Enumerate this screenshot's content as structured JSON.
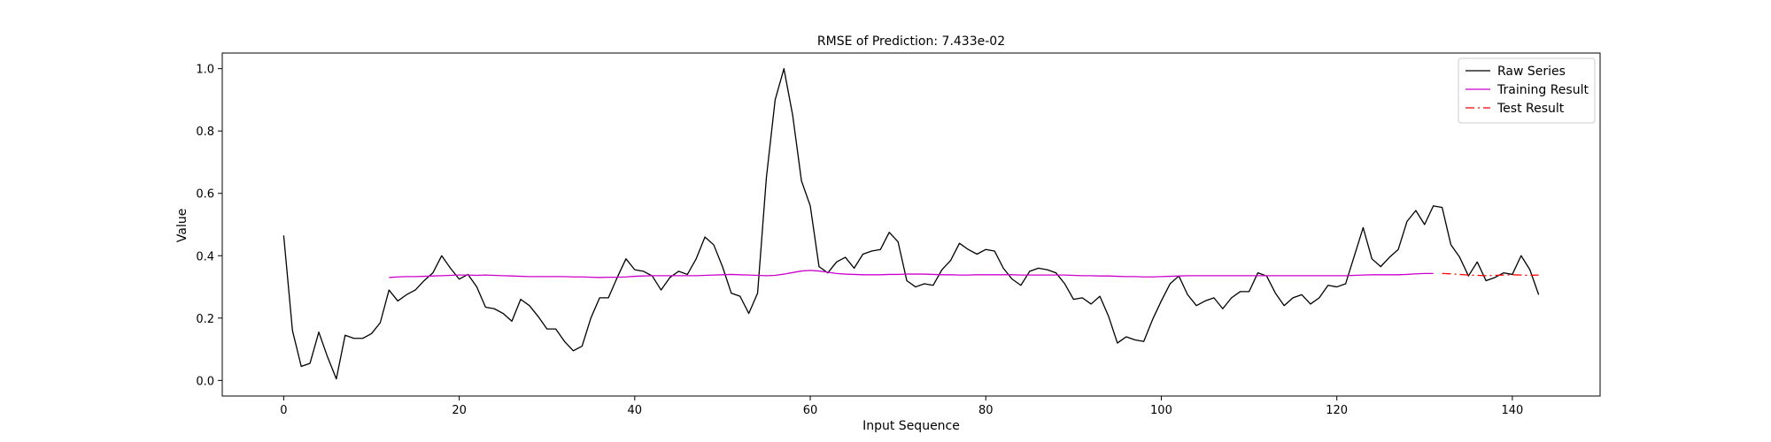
{
  "chart_data": {
    "type": "line",
    "title": "RMSE of Prediction: 7.433e-02",
    "xlabel": "Input Sequence",
    "ylabel": "Value",
    "xlim": [
      -7,
      150
    ],
    "ylim": [
      -0.05,
      1.05
    ],
    "xticks": [
      0,
      20,
      40,
      60,
      80,
      100,
      120,
      140
    ],
    "yticks": [
      0.0,
      0.2,
      0.4,
      0.6,
      0.8,
      1.0
    ],
    "ytick_labels": [
      "0.0",
      "0.2",
      "0.4",
      "0.6",
      "0.8",
      "1.0"
    ],
    "grid": false,
    "legend_position": "top-right",
    "series": [
      {
        "name": "Raw Series",
        "color": "#000000",
        "dash": "solid",
        "x_start": 0,
        "values": [
          0.465,
          0.16,
          0.045,
          0.055,
          0.155,
          0.075,
          0.005,
          0.145,
          0.135,
          0.135,
          0.15,
          0.185,
          0.29,
          0.255,
          0.275,
          0.29,
          0.32,
          0.345,
          0.4,
          0.36,
          0.325,
          0.34,
          0.3,
          0.235,
          0.23,
          0.215,
          0.19,
          0.26,
          0.24,
          0.205,
          0.165,
          0.165,
          0.125,
          0.095,
          0.11,
          0.2,
          0.265,
          0.265,
          0.33,
          0.39,
          0.355,
          0.35,
          0.335,
          0.29,
          0.33,
          0.35,
          0.34,
          0.39,
          0.46,
          0.435,
          0.365,
          0.28,
          0.27,
          0.215,
          0.28,
          0.65,
          0.9,
          1.0,
          0.85,
          0.64,
          0.56,
          0.365,
          0.345,
          0.38,
          0.395,
          0.36,
          0.405,
          0.415,
          0.42,
          0.475,
          0.445,
          0.32,
          0.3,
          0.31,
          0.305,
          0.355,
          0.385,
          0.44,
          0.42,
          0.405,
          0.42,
          0.415,
          0.36,
          0.325,
          0.305,
          0.35,
          0.36,
          0.355,
          0.345,
          0.31,
          0.26,
          0.265,
          0.245,
          0.27,
          0.205,
          0.12,
          0.14,
          0.13,
          0.125,
          0.195,
          0.255,
          0.31,
          0.335,
          0.275,
          0.24,
          0.255,
          0.265,
          0.23,
          0.265,
          0.285,
          0.285,
          0.345,
          0.335,
          0.28,
          0.24,
          0.265,
          0.275,
          0.245,
          0.265,
          0.305,
          0.3,
          0.31,
          0.4,
          0.49,
          0.39,
          0.365,
          0.395,
          0.42,
          0.51,
          0.545,
          0.5,
          0.56,
          0.555,
          0.435,
          0.395,
          0.335,
          0.38,
          0.32,
          0.33,
          0.345,
          0.34,
          0.4,
          0.355,
          0.275
        ]
      },
      {
        "name": "Training Result",
        "color": "#cc00cc",
        "dash": "solid",
        "x_start": 12,
        "values": [
          0.33,
          0.332,
          0.333,
          0.333,
          0.334,
          0.335,
          0.336,
          0.337,
          0.338,
          0.338,
          0.337,
          0.338,
          0.337,
          0.336,
          0.335,
          0.334,
          0.333,
          0.333,
          0.333,
          0.333,
          0.333,
          0.332,
          0.332,
          0.331,
          0.33,
          0.331,
          0.331,
          0.332,
          0.334,
          0.335,
          0.336,
          0.336,
          0.336,
          0.336,
          0.336,
          0.336,
          0.337,
          0.338,
          0.339,
          0.34,
          0.339,
          0.338,
          0.337,
          0.336,
          0.337,
          0.341,
          0.346,
          0.351,
          0.353,
          0.351,
          0.347,
          0.343,
          0.341,
          0.34,
          0.339,
          0.339,
          0.339,
          0.34,
          0.34,
          0.341,
          0.341,
          0.341,
          0.34,
          0.339,
          0.339,
          0.338,
          0.338,
          0.339,
          0.339,
          0.339,
          0.339,
          0.339,
          0.338,
          0.338,
          0.338,
          0.338,
          0.338,
          0.338,
          0.337,
          0.336,
          0.336,
          0.335,
          0.335,
          0.334,
          0.333,
          0.333,
          0.332,
          0.332,
          0.333,
          0.334,
          0.335,
          0.336,
          0.336,
          0.336,
          0.336,
          0.336,
          0.336,
          0.336,
          0.336,
          0.336,
          0.336,
          0.336,
          0.336,
          0.336,
          0.336,
          0.336,
          0.336,
          0.336,
          0.336,
          0.336,
          0.337,
          0.338,
          0.339,
          0.339,
          0.339,
          0.339,
          0.34,
          0.342,
          0.343,
          0.343
        ]
      },
      {
        "name": "Test Result",
        "color": "#ff0000",
        "dash": "dashdot",
        "x_start": 132,
        "values": [
          0.343,
          0.342,
          0.34,
          0.338,
          0.337,
          0.336,
          0.337,
          0.338,
          0.339,
          0.338,
          0.337,
          0.338
        ]
      }
    ]
  }
}
